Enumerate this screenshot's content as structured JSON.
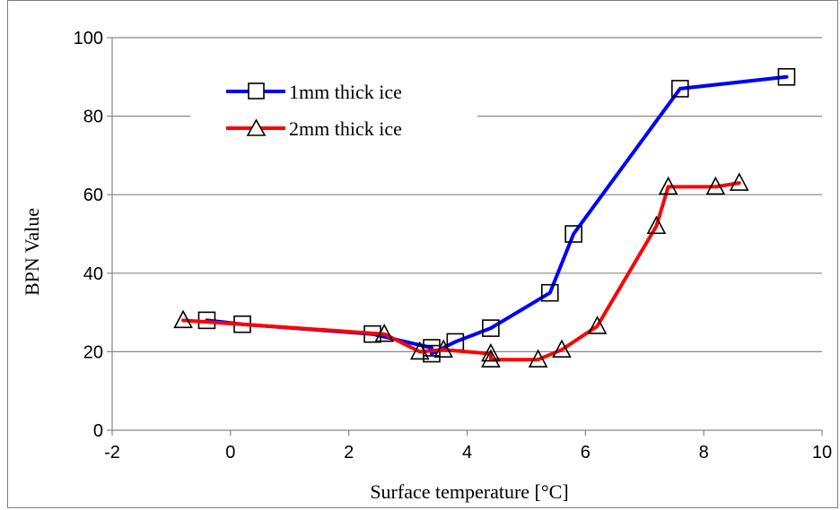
{
  "chart_data": {
    "type": "line",
    "xlabel": "Surface temperature [°C]",
    "ylabel": "BPN Value",
    "xlim": [
      -2,
      10
    ],
    "ylim": [
      0,
      100
    ],
    "x_ticks": [
      -2,
      0,
      2,
      4,
      6,
      8,
      10
    ],
    "y_ticks": [
      0,
      20,
      40,
      60,
      80,
      100
    ],
    "grid": "horizontal",
    "legend_position": "top-left",
    "series": [
      {
        "name": "1mm thick ice",
        "color": "#0000ff",
        "marker": "square",
        "x": [
          -0.4,
          0.2,
          2.4,
          3.4,
          3.4,
          3.8,
          4.4,
          5.4,
          5.8,
          7.6,
          9.4
        ],
        "y": [
          28,
          27,
          24.5,
          21,
          19.5,
          22.5,
          26,
          35,
          50,
          87,
          90
        ]
      },
      {
        "name": "2mm thick ice",
        "color": "#ff0000",
        "marker": "triangle",
        "x": [
          -0.8,
          2.6,
          3.2,
          3.6,
          4.4,
          4.4,
          5.2,
          5.6,
          6.2,
          7.2,
          7.4,
          8.2,
          8.6
        ],
        "y": [
          28,
          24.5,
          20,
          20.5,
          19.5,
          18,
          18,
          20.5,
          26.5,
          52,
          62,
          62,
          63
        ]
      }
    ]
  }
}
